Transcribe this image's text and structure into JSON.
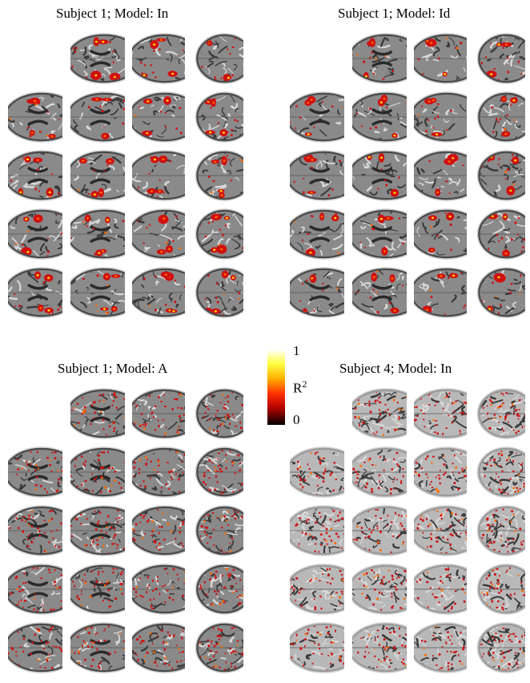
{
  "panels": [
    {
      "title": "Subject 1; Model: In",
      "variant": "t1",
      "act": "strong"
    },
    {
      "title": "Subject 1; Model: Id",
      "variant": "t1",
      "act": "medium"
    },
    {
      "title": "Subject 1; Model: A",
      "variant": "t1",
      "act": "speckle"
    },
    {
      "title": "Subject 4; Model: In",
      "variant": "noisy",
      "act": "speckle"
    }
  ],
  "colorbar": {
    "max_label": "1",
    "min_label": "0",
    "quantity": "R",
    "exponent": "2"
  },
  "colors": {
    "activation_red": "#d01010",
    "activation_orange": "#ff6a00",
    "activation_yellow": "#ffd400",
    "brain_gray": "#8a8a8a"
  }
}
